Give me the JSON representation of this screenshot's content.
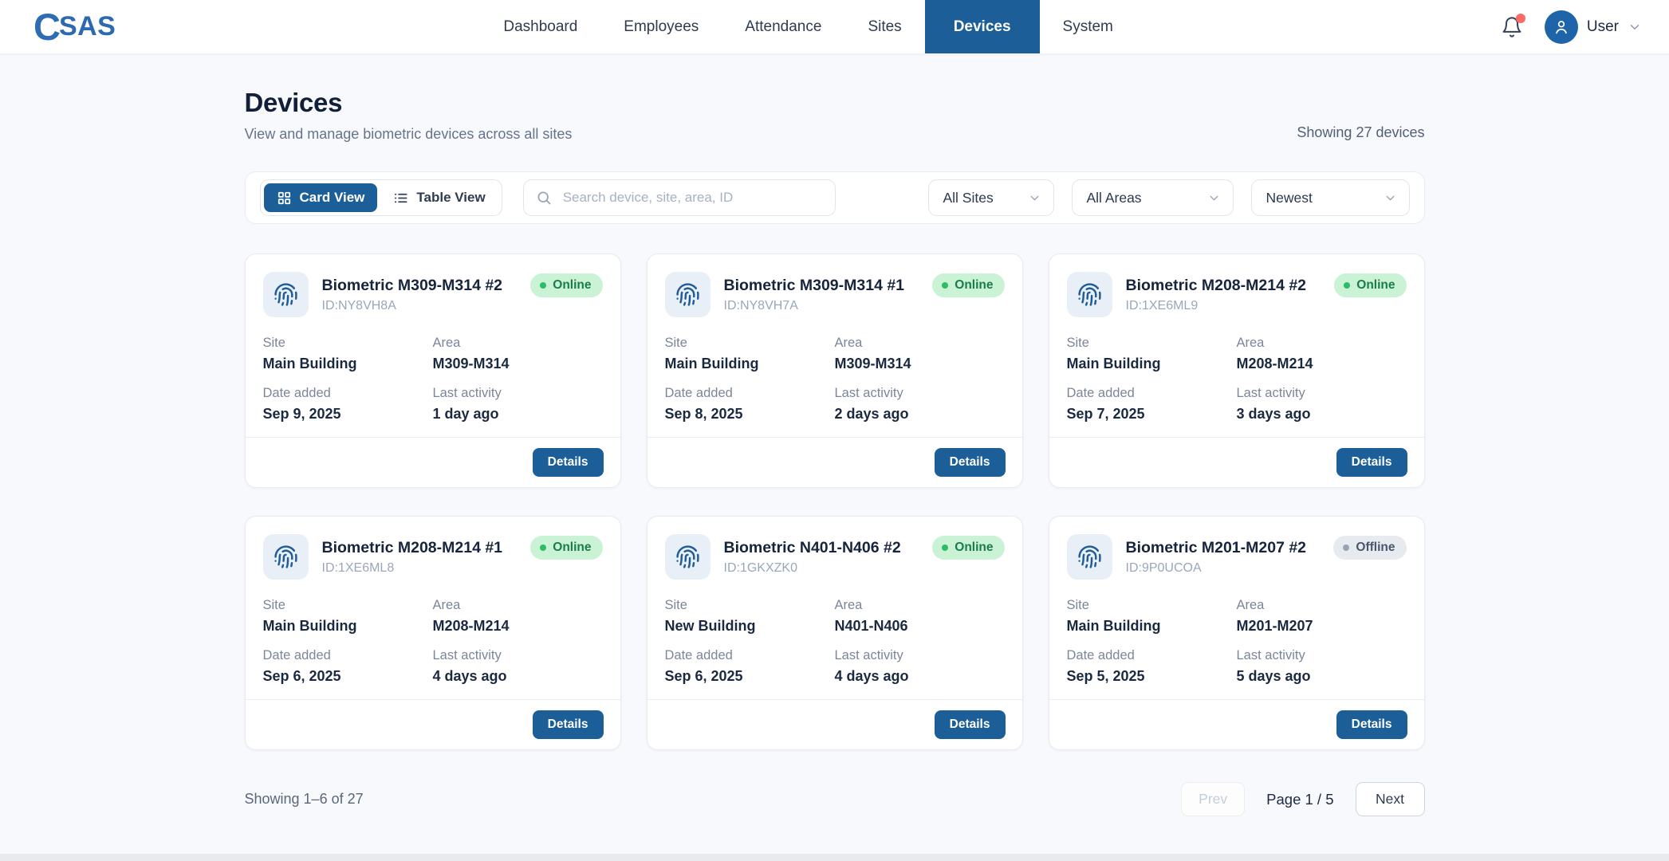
{
  "brand": {
    "logo_mark": "C",
    "logo_text": "SAS"
  },
  "nav": {
    "items": [
      {
        "label": "Dashboard",
        "active": false
      },
      {
        "label": "Employees",
        "active": false
      },
      {
        "label": "Attendance",
        "active": false
      },
      {
        "label": "Sites",
        "active": false
      },
      {
        "label": "Devices",
        "active": true
      },
      {
        "label": "System",
        "active": false
      }
    ]
  },
  "user_menu": {
    "label": "User",
    "has_notification": true
  },
  "page": {
    "title": "Devices",
    "subtitle": "View and manage biometric devices across all sites",
    "showing_summary": "Showing 27 devices"
  },
  "toolbar": {
    "card_view_label": "Card View",
    "table_view_label": "Table View",
    "search_placeholder": "Search device, site, area, ID",
    "site_filter": "All Sites",
    "area_filter": "All Areas",
    "sort_filter": "Newest"
  },
  "labels": {
    "site": "Site",
    "area": "Area",
    "date_added": "Date added",
    "last_activity": "Last activity",
    "details": "Details"
  },
  "cards": [
    {
      "name": "Biometric M309-M314 #2",
      "id_text": "ID:NY8VH8A",
      "status": "Online",
      "site": "Main Building",
      "area": "M309-M314",
      "date_added": "Sep 9, 2025",
      "last_activity": "1 day ago"
    },
    {
      "name": "Biometric M309-M314 #1",
      "id_text": "ID:NY8VH7A",
      "status": "Online",
      "site": "Main Building",
      "area": "M309-M314",
      "date_added": "Sep 8, 2025",
      "last_activity": "2 days ago"
    },
    {
      "name": "Biometric M208-M214 #2",
      "id_text": "ID:1XE6ML9",
      "status": "Online",
      "site": "Main Building",
      "area": "M208-M214",
      "date_added": "Sep 7, 2025",
      "last_activity": "3 days ago"
    },
    {
      "name": "Biometric M208-M214 #1",
      "id_text": "ID:1XE6ML8",
      "status": "Online",
      "site": "Main Building",
      "area": "M208-M214",
      "date_added": "Sep 6, 2025",
      "last_activity": "4 days ago"
    },
    {
      "name": "Biometric N401-N406 #2",
      "id_text": "ID:1GKXZK0",
      "status": "Online",
      "site": "New Building",
      "area": "N401-N406",
      "date_added": "Sep 6, 2025",
      "last_activity": "4 days ago"
    },
    {
      "name": "Biometric M201-M207 #2",
      "id_text": "ID:9P0UCOA",
      "status": "Offline",
      "site": "Main Building",
      "area": "M201-M207",
      "date_added": "Sep 5, 2025",
      "last_activity": "5 days ago"
    }
  ],
  "pagination": {
    "summary": "Showing 1–6 of 27",
    "prev": "Prev",
    "page_indicator": "Page 1 / 5",
    "next": "Next"
  },
  "colors": {
    "primary_blue": "#1b5e98",
    "brand_blue": "#2c69b0",
    "online_bg": "#c9f3d4",
    "online_text": "#1a7c4a",
    "online_dot": "#2ebd66",
    "offline_bg": "#e7ebf0",
    "offline_text": "#49566b",
    "offline_dot": "#98a3b3",
    "notification_dot": "#fb6a63",
    "page_bg": "#f7f9fc"
  }
}
